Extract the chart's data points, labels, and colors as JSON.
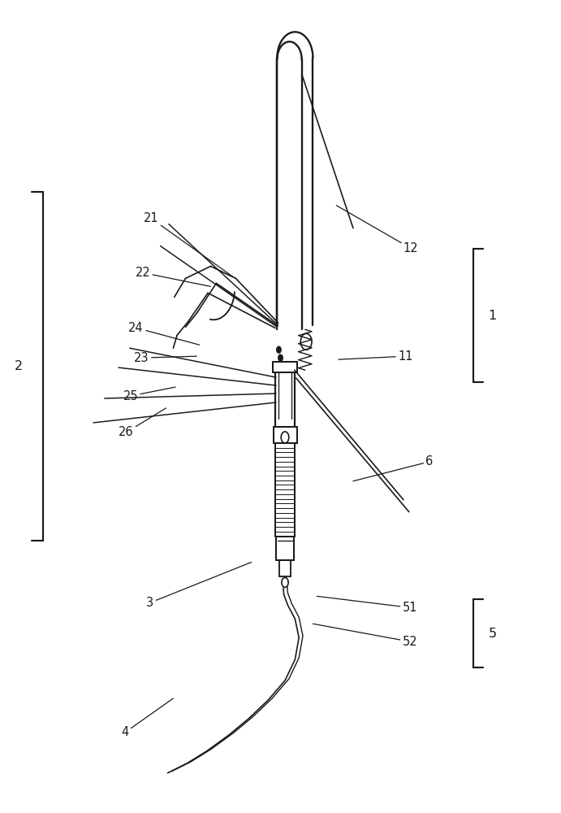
{
  "bg_color": "#ffffff",
  "line_color": "#1a1a1a",
  "lw": 1.2,
  "fig_width": 6.91,
  "fig_height": 10.0
}
